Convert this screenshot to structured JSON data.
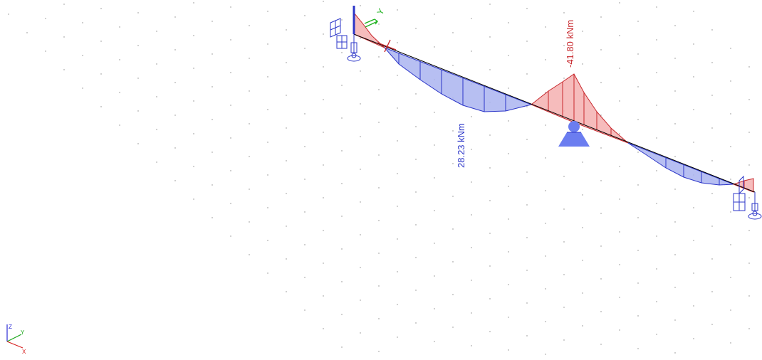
{
  "viewport": {
    "background": "#ffffff",
    "grid_color": "#8a8a8a"
  },
  "moment_diagram": {
    "positive_fill": "#aab4f0",
    "positive_stroke": "#2b35c8",
    "negative_fill": "#f4b0b0",
    "negative_stroke": "#c8282d",
    "max_span_label": "28.23 kNm",
    "support_label": "-41.80 kNm"
  },
  "local_axis": {
    "y_label": "Y",
    "color": "#1db11d"
  },
  "axis_triad": {
    "z_label": "Z",
    "y_label": "Y",
    "x_label": "X",
    "z_color": "#2b2bd6",
    "y_color": "#1aa61a",
    "x_color": "#d62020"
  },
  "supports": {
    "color": "#2b35c8",
    "pin_fill": "#6b7df0"
  }
}
